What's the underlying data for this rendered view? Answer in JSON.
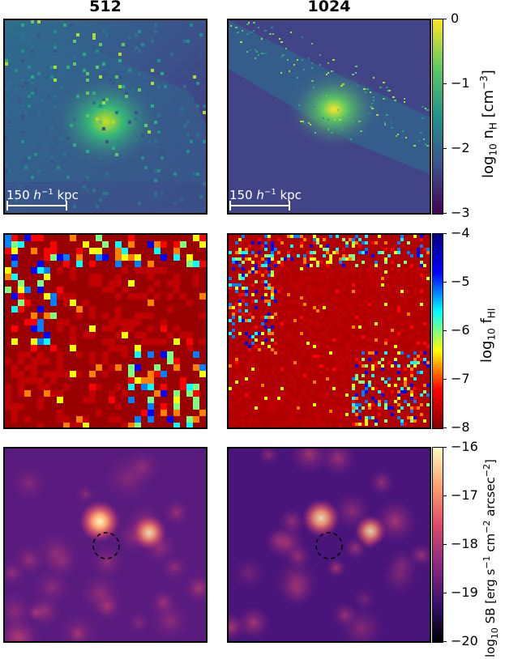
{
  "chart_data": [
    {
      "type": "heatmap",
      "column_titles": [
        "512",
        "1024"
      ],
      "colorbar_label": "log10 nH [cm^-3]",
      "colorbar_label_parts": {
        "prefix": "log",
        "sub": "10",
        "mid": " n",
        "sub2": "H",
        "rest": " [cm",
        "sup": "−3",
        "end": "]"
      },
      "colorbar_ticks": [
        "0",
        "−1",
        "−2",
        "−3"
      ],
      "vmin": -3,
      "vmax": 0,
      "colormap": "viridis",
      "scale_bar_text": "150 h−1 kpc"
    },
    {
      "type": "heatmap",
      "colorbar_label": "log10 fHI",
      "colorbar_label_parts": {
        "prefix": "log",
        "sub": "10",
        "mid": " f",
        "sub2": "HI"
      },
      "colorbar_ticks": [
        "−4",
        "−5",
        "−6",
        "−7",
        "−8"
      ],
      "vmin": -8,
      "vmax": -4,
      "colormap": "jet"
    },
    {
      "type": "heatmap",
      "colorbar_label": "log10 SB [erg s−1 cm−2 arcsec−2]",
      "colorbar_label_parts": {
        "prefix": "log",
        "sub": "10",
        "rest": " SB [erg s",
        "sup1": "−1",
        "rest2": " cm",
        "sup2": "−2",
        "rest3": " arcsec",
        "sup3": "−2",
        "end": "]"
      },
      "colorbar_ticks": [
        "−16",
        "−17",
        "−18",
        "−19",
        "−20"
      ],
      "vmin": -20,
      "vmax": -16,
      "colormap": "magma"
    }
  ],
  "scale_bar": {
    "value": "150",
    "h": "h",
    "exp": "−1",
    "unit": "kpc"
  },
  "colors": {
    "viridis": [
      "#440154",
      "#3b528b",
      "#21918c",
      "#5ec962",
      "#fde725"
    ],
    "jet": [
      "#000080",
      "#0000ff",
      "#00ffff",
      "#ffff00",
      "#ff0000",
      "#800000"
    ],
    "magma": [
      "#000004",
      "#3b0f70",
      "#8c2981",
      "#de4968",
      "#fe9f6d",
      "#fcfdbf"
    ]
  }
}
